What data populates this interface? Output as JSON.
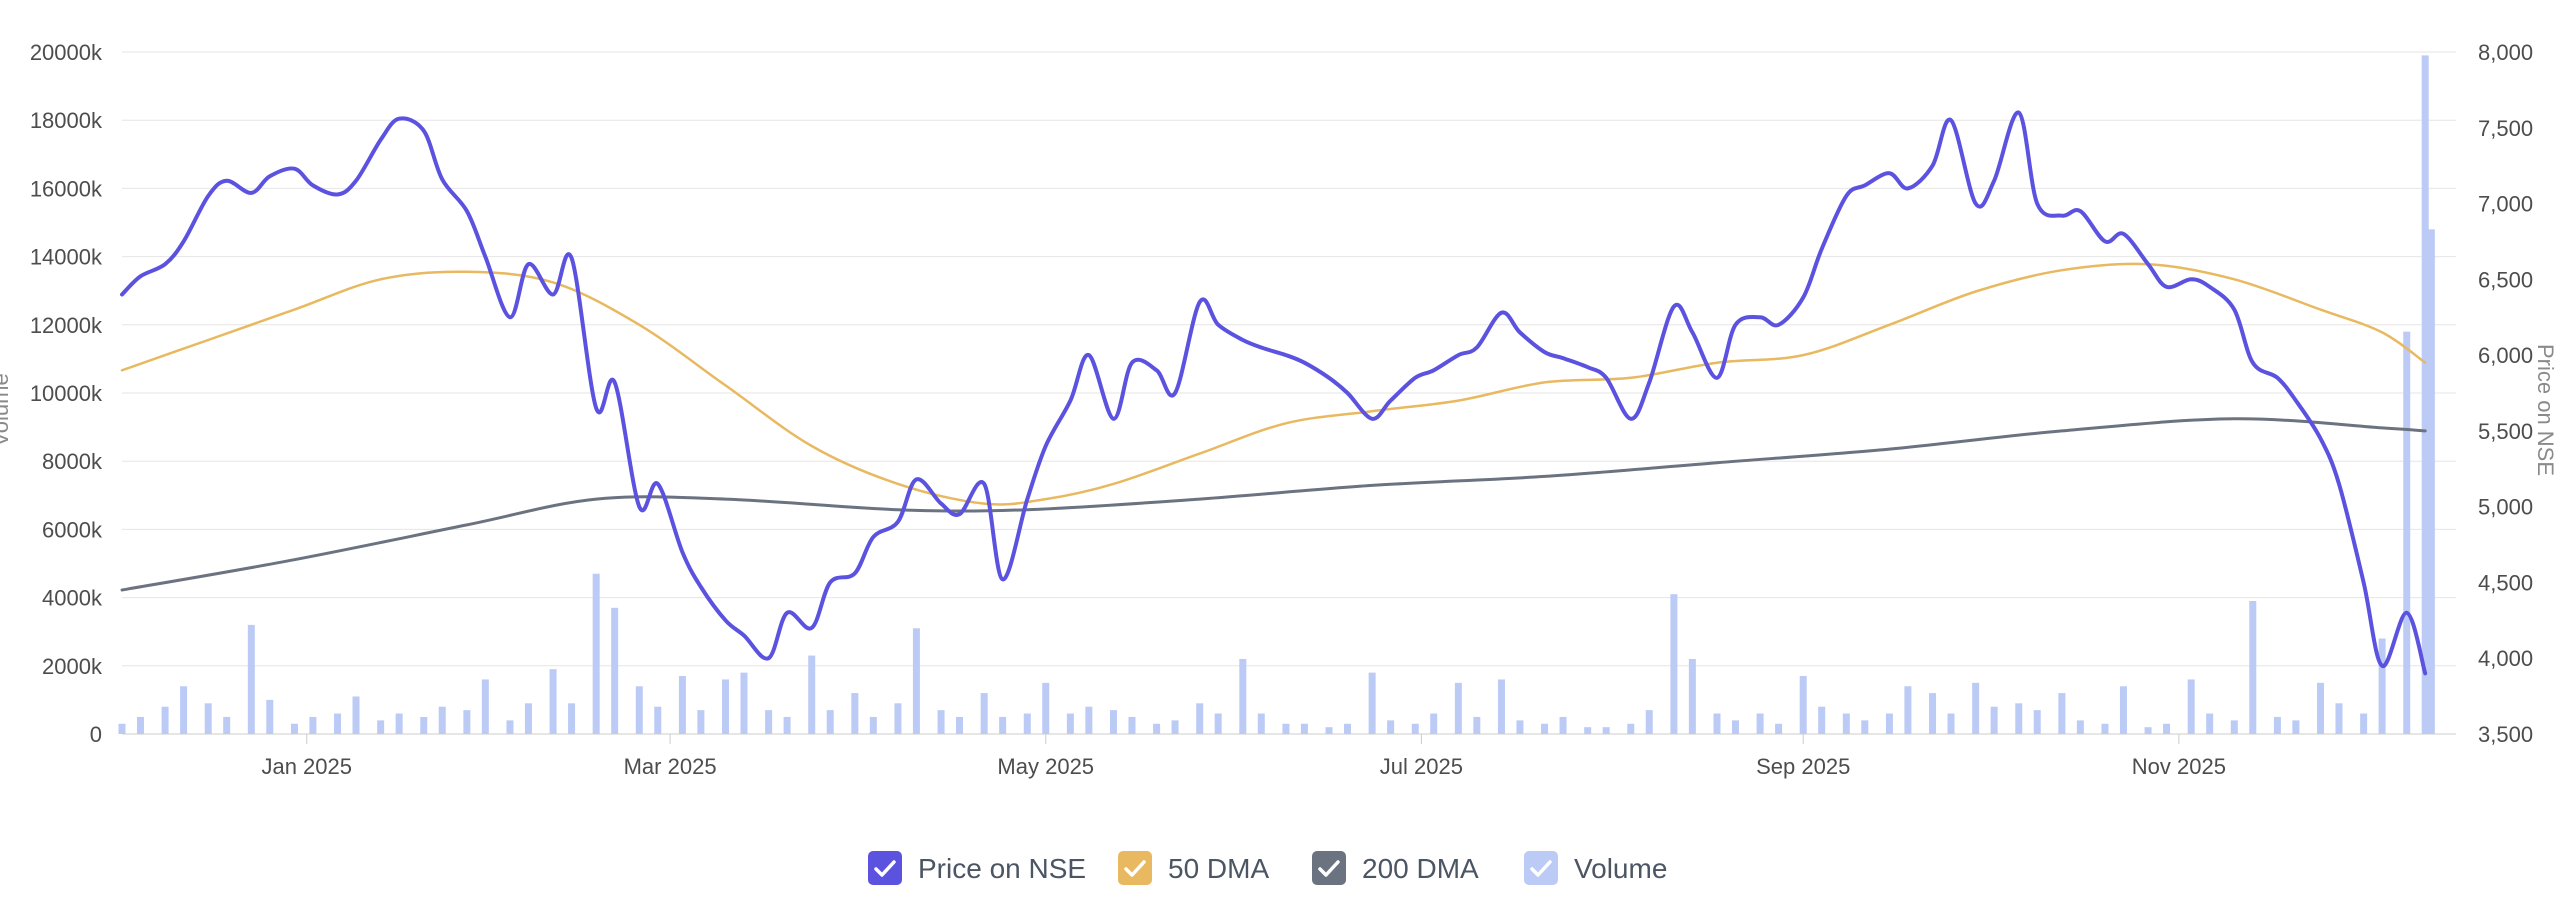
{
  "chart_data": {
    "type": "line",
    "x_axis": {
      "type": "date",
      "range": [
        "2024-12-02",
        "2025-12-16"
      ],
      "tick_labels": [
        "Jan 2025",
        "Mar 2025",
        "May 2025",
        "Jul 2025",
        "Sep 2025",
        "Nov 2025"
      ],
      "tick_dates": [
        "2025-01-01",
        "2025-03-01",
        "2025-05-01",
        "2025-07-01",
        "2025-09-01",
        "2025-11-01"
      ]
    },
    "y_axis_left": {
      "label": "Volume",
      "range": [
        0,
        20000
      ],
      "tick_labels": [
        "0",
        "2000k",
        "4000k",
        "6000k",
        "8000k",
        "10000k",
        "12000k",
        "14000k",
        "16000k",
        "18000k",
        "20000k"
      ]
    },
    "y_axis_right": {
      "label": "Price on NSE",
      "range": [
        3500,
        8000
      ],
      "tick_labels": [
        "3,500",
        "4,000",
        "4,500",
        "5,000",
        "5,500",
        "6,000",
        "6,500",
        "7,000",
        "7,500",
        "8,000"
      ]
    },
    "grid": true,
    "legend_position": "bottom",
    "series": [
      {
        "name": "Price on NSE",
        "axis": "right",
        "style": "line",
        "color": "#5b52e0",
        "points": [
          [
            "2024-12-02",
            6400
          ],
          [
            "2024-12-05",
            6520
          ],
          [
            "2024-12-09",
            6600
          ],
          [
            "2024-12-12",
            6750
          ],
          [
            "2024-12-16",
            7050
          ],
          [
            "2024-12-19",
            7150
          ],
          [
            "2024-12-23",
            7070
          ],
          [
            "2024-12-26",
            7180
          ],
          [
            "2024-12-30",
            7230
          ],
          [
            "2025-01-02",
            7120
          ],
          [
            "2025-01-06",
            7060
          ],
          [
            "2025-01-09",
            7150
          ],
          [
            "2025-01-13",
            7420
          ],
          [
            "2025-01-16",
            7560
          ],
          [
            "2025-01-20",
            7480
          ],
          [
            "2025-01-23",
            7160
          ],
          [
            "2025-01-27",
            6950
          ],
          [
            "2025-01-30",
            6650
          ],
          [
            "2025-02-03",
            6250
          ],
          [
            "2025-02-06",
            6600
          ],
          [
            "2025-02-10",
            6400
          ],
          [
            "2025-02-13",
            6640
          ],
          [
            "2025-02-17",
            5650
          ],
          [
            "2025-02-20",
            5820
          ],
          [
            "2025-02-24",
            5000
          ],
          [
            "2025-02-27",
            5150
          ],
          [
            "2025-03-03",
            4700
          ],
          [
            "2025-03-06",
            4470
          ],
          [
            "2025-03-10",
            4250
          ],
          [
            "2025-03-13",
            4150
          ],
          [
            "2025-03-17",
            4000
          ],
          [
            "2025-03-20",
            4300
          ],
          [
            "2025-03-24",
            4200
          ],
          [
            "2025-03-27",
            4500
          ],
          [
            "2025-03-31",
            4560
          ],
          [
            "2025-04-03",
            4800
          ],
          [
            "2025-04-07",
            4900
          ],
          [
            "2025-04-10",
            5180
          ],
          [
            "2025-04-14",
            5020
          ],
          [
            "2025-04-17",
            4950
          ],
          [
            "2025-04-21",
            5150
          ],
          [
            "2025-04-24",
            4520
          ],
          [
            "2025-04-28",
            5050
          ],
          [
            "2025-05-01",
            5400
          ],
          [
            "2025-05-05",
            5700
          ],
          [
            "2025-05-08",
            6000
          ],
          [
            "2025-05-12",
            5580
          ],
          [
            "2025-05-15",
            5950
          ],
          [
            "2025-05-19",
            5900
          ],
          [
            "2025-05-22",
            5750
          ],
          [
            "2025-05-26",
            6350
          ],
          [
            "2025-05-29",
            6200
          ],
          [
            "2025-06-02",
            6100
          ],
          [
            "2025-06-05",
            6050
          ],
          [
            "2025-06-09",
            6000
          ],
          [
            "2025-06-12",
            5950
          ],
          [
            "2025-06-16",
            5850
          ],
          [
            "2025-06-19",
            5750
          ],
          [
            "2025-06-23",
            5580
          ],
          [
            "2025-06-26",
            5700
          ],
          [
            "2025-06-30",
            5850
          ],
          [
            "2025-07-03",
            5900
          ],
          [
            "2025-07-07",
            6000
          ],
          [
            "2025-07-10",
            6050
          ],
          [
            "2025-07-14",
            6280
          ],
          [
            "2025-07-17",
            6150
          ],
          [
            "2025-07-21",
            6020
          ],
          [
            "2025-07-24",
            5980
          ],
          [
            "2025-07-28",
            5920
          ],
          [
            "2025-07-31",
            5850
          ],
          [
            "2025-08-04",
            5580
          ],
          [
            "2025-08-07",
            5820
          ],
          [
            "2025-08-11",
            6320
          ],
          [
            "2025-08-14",
            6150
          ],
          [
            "2025-08-18",
            5850
          ],
          [
            "2025-08-21",
            6200
          ],
          [
            "2025-08-25",
            6250
          ],
          [
            "2025-08-28",
            6200
          ],
          [
            "2025-09-01",
            6380
          ],
          [
            "2025-09-04",
            6700
          ],
          [
            "2025-09-08",
            7050
          ],
          [
            "2025-09-11",
            7120
          ],
          [
            "2025-09-15",
            7200
          ],
          [
            "2025-09-18",
            7100
          ],
          [
            "2025-09-22",
            7250
          ],
          [
            "2025-09-25",
            7550
          ],
          [
            "2025-09-29",
            7000
          ],
          [
            "2025-10-02",
            7150
          ],
          [
            "2025-10-06",
            7600
          ],
          [
            "2025-10-09",
            7000
          ],
          [
            "2025-10-13",
            6920
          ],
          [
            "2025-10-16",
            6950
          ],
          [
            "2025-10-20",
            6750
          ],
          [
            "2025-10-23",
            6800
          ],
          [
            "2025-10-27",
            6600
          ],
          [
            "2025-10-30",
            6450
          ],
          [
            "2025-11-03",
            6500
          ],
          [
            "2025-11-06",
            6450
          ],
          [
            "2025-11-10",
            6300
          ],
          [
            "2025-11-13",
            5950
          ],
          [
            "2025-11-17",
            5850
          ],
          [
            "2025-11-20",
            5700
          ],
          [
            "2025-11-24",
            5450
          ],
          [
            "2025-11-27",
            5150
          ],
          [
            "2025-12-01",
            4500
          ],
          [
            "2025-12-04",
            3950
          ],
          [
            "2025-12-08",
            4300
          ],
          [
            "2025-12-11",
            3900
          ]
        ]
      },
      {
        "name": "50 DMA",
        "axis": "right",
        "style": "line",
        "color": "#e8b960",
        "points": [
          [
            "2024-12-02",
            5900
          ],
          [
            "2024-12-16",
            6100
          ],
          [
            "2024-12-30",
            6300
          ],
          [
            "2025-01-13",
            6500
          ],
          [
            "2025-01-27",
            6550
          ],
          [
            "2025-02-10",
            6480
          ],
          [
            "2025-02-24",
            6200
          ],
          [
            "2025-03-10",
            5800
          ],
          [
            "2025-03-24",
            5400
          ],
          [
            "2025-04-07",
            5150
          ],
          [
            "2025-04-21",
            5020
          ],
          [
            "2025-05-01",
            5050
          ],
          [
            "2025-05-12",
            5150
          ],
          [
            "2025-05-26",
            5350
          ],
          [
            "2025-06-09",
            5550
          ],
          [
            "2025-06-23",
            5630
          ],
          [
            "2025-07-07",
            5700
          ],
          [
            "2025-07-21",
            5820
          ],
          [
            "2025-08-04",
            5850
          ],
          [
            "2025-08-18",
            5950
          ],
          [
            "2025-09-01",
            6000
          ],
          [
            "2025-09-15",
            6200
          ],
          [
            "2025-09-29",
            6420
          ],
          [
            "2025-10-13",
            6560
          ],
          [
            "2025-10-27",
            6600
          ],
          [
            "2025-11-10",
            6500
          ],
          [
            "2025-11-24",
            6300
          ],
          [
            "2025-12-04",
            6150
          ],
          [
            "2025-12-11",
            5950
          ]
        ]
      },
      {
        "name": "200 DMA",
        "axis": "right",
        "style": "line",
        "color": "#6b7280",
        "points": [
          [
            "2024-12-02",
            4450
          ],
          [
            "2024-12-30",
            4650
          ],
          [
            "2025-01-27",
            4880
          ],
          [
            "2025-02-17",
            5050
          ],
          [
            "2025-03-10",
            5050
          ],
          [
            "2025-04-07",
            4980
          ],
          [
            "2025-04-28",
            4980
          ],
          [
            "2025-05-26",
            5050
          ],
          [
            "2025-06-23",
            5140
          ],
          [
            "2025-07-21",
            5200
          ],
          [
            "2025-08-18",
            5290
          ],
          [
            "2025-09-15",
            5380
          ],
          [
            "2025-10-13",
            5500
          ],
          [
            "2025-11-10",
            5580
          ],
          [
            "2025-12-04",
            5520
          ],
          [
            "2025-12-11",
            5500
          ]
        ]
      },
      {
        "name": "Volume",
        "axis": "left",
        "style": "bar",
        "unit": "k",
        "color": "#bccbf5",
        "points": [
          [
            "2024-12-02",
            300
          ],
          [
            "2024-12-05",
            500
          ],
          [
            "2024-12-09",
            800
          ],
          [
            "2024-12-12",
            1400
          ],
          [
            "2024-12-16",
            900
          ],
          [
            "2024-12-19",
            500
          ],
          [
            "2024-12-23",
            3200
          ],
          [
            "2024-12-26",
            1000
          ],
          [
            "2024-12-30",
            300
          ],
          [
            "2025-01-02",
            500
          ],
          [
            "2025-01-06",
            600
          ],
          [
            "2025-01-09",
            1100
          ],
          [
            "2025-01-13",
            400
          ],
          [
            "2025-01-16",
            600
          ],
          [
            "2025-01-20",
            500
          ],
          [
            "2025-01-23",
            800
          ],
          [
            "2025-01-27",
            700
          ],
          [
            "2025-01-30",
            1600
          ],
          [
            "2025-02-03",
            400
          ],
          [
            "2025-02-06",
            900
          ],
          [
            "2025-02-10",
            1900
          ],
          [
            "2025-02-13",
            900
          ],
          [
            "2025-02-17",
            4700
          ],
          [
            "2025-02-20",
            3700
          ],
          [
            "2025-02-24",
            1400
          ],
          [
            "2025-02-27",
            800
          ],
          [
            "2025-03-03",
            1700
          ],
          [
            "2025-03-06",
            700
          ],
          [
            "2025-03-10",
            1600
          ],
          [
            "2025-03-13",
            1800
          ],
          [
            "2025-03-17",
            700
          ],
          [
            "2025-03-20",
            500
          ],
          [
            "2025-03-24",
            2300
          ],
          [
            "2025-03-27",
            700
          ],
          [
            "2025-03-31",
            1200
          ],
          [
            "2025-04-03",
            500
          ],
          [
            "2025-04-07",
            900
          ],
          [
            "2025-04-10",
            3100
          ],
          [
            "2025-04-14",
            700
          ],
          [
            "2025-04-17",
            500
          ],
          [
            "2025-04-21",
            1200
          ],
          [
            "2025-04-24",
            500
          ],
          [
            "2025-04-28",
            600
          ],
          [
            "2025-05-01",
            1500
          ],
          [
            "2025-05-05",
            600
          ],
          [
            "2025-05-08",
            800
          ],
          [
            "2025-05-12",
            700
          ],
          [
            "2025-05-15",
            500
          ],
          [
            "2025-05-19",
            300
          ],
          [
            "2025-05-22",
            400
          ],
          [
            "2025-05-26",
            900
          ],
          [
            "2025-05-29",
            600
          ],
          [
            "2025-06-02",
            2200
          ],
          [
            "2025-06-05",
            600
          ],
          [
            "2025-06-09",
            300
          ],
          [
            "2025-06-12",
            300
          ],
          [
            "2025-06-16",
            200
          ],
          [
            "2025-06-19",
            300
          ],
          [
            "2025-06-23",
            1800
          ],
          [
            "2025-06-26",
            400
          ],
          [
            "2025-06-30",
            300
          ],
          [
            "2025-07-03",
            600
          ],
          [
            "2025-07-07",
            1500
          ],
          [
            "2025-07-10",
            500
          ],
          [
            "2025-07-14",
            1600
          ],
          [
            "2025-07-17",
            400
          ],
          [
            "2025-07-21",
            300
          ],
          [
            "2025-07-24",
            500
          ],
          [
            "2025-07-28",
            200
          ],
          [
            "2025-07-31",
            200
          ],
          [
            "2025-08-04",
            300
          ],
          [
            "2025-08-07",
            700
          ],
          [
            "2025-08-11",
            4100
          ],
          [
            "2025-08-14",
            2200
          ],
          [
            "2025-08-18",
            600
          ],
          [
            "2025-08-21",
            400
          ],
          [
            "2025-08-25",
            600
          ],
          [
            "2025-08-28",
            300
          ],
          [
            "2025-09-01",
            1700
          ],
          [
            "2025-09-04",
            800
          ],
          [
            "2025-09-08",
            600
          ],
          [
            "2025-09-11",
            400
          ],
          [
            "2025-09-15",
            600
          ],
          [
            "2025-09-18",
            1400
          ],
          [
            "2025-09-22",
            1200
          ],
          [
            "2025-09-25",
            600
          ],
          [
            "2025-09-29",
            1500
          ],
          [
            "2025-10-02",
            800
          ],
          [
            "2025-10-06",
            900
          ],
          [
            "2025-10-09",
            700
          ],
          [
            "2025-10-13",
            1200
          ],
          [
            "2025-10-16",
            400
          ],
          [
            "2025-10-20",
            300
          ],
          [
            "2025-10-23",
            1400
          ],
          [
            "2025-10-27",
            200
          ],
          [
            "2025-10-30",
            300
          ],
          [
            "2025-11-03",
            1600
          ],
          [
            "2025-11-06",
            600
          ],
          [
            "2025-11-10",
            400
          ],
          [
            "2025-11-13",
            3900
          ],
          [
            "2025-11-17",
            500
          ],
          [
            "2025-11-20",
            400
          ],
          [
            "2025-11-24",
            1500
          ],
          [
            "2025-11-27",
            900
          ],
          [
            "2025-12-01",
            600
          ],
          [
            "2025-12-04",
            2800
          ],
          [
            "2025-12-08",
            11800
          ],
          [
            "2025-12-11",
            19900
          ],
          [
            "2025-12-12",
            14800
          ]
        ]
      }
    ],
    "legend": [
      {
        "name": "Price on NSE",
        "color": "#5b52e0",
        "checked": true
      },
      {
        "name": "50 DMA",
        "color": "#e8b960",
        "checked": true
      },
      {
        "name": "200 DMA",
        "color": "#6b7280",
        "checked": true
      },
      {
        "name": "Volume",
        "color": "#bccbf5",
        "checked": true
      }
    ]
  }
}
